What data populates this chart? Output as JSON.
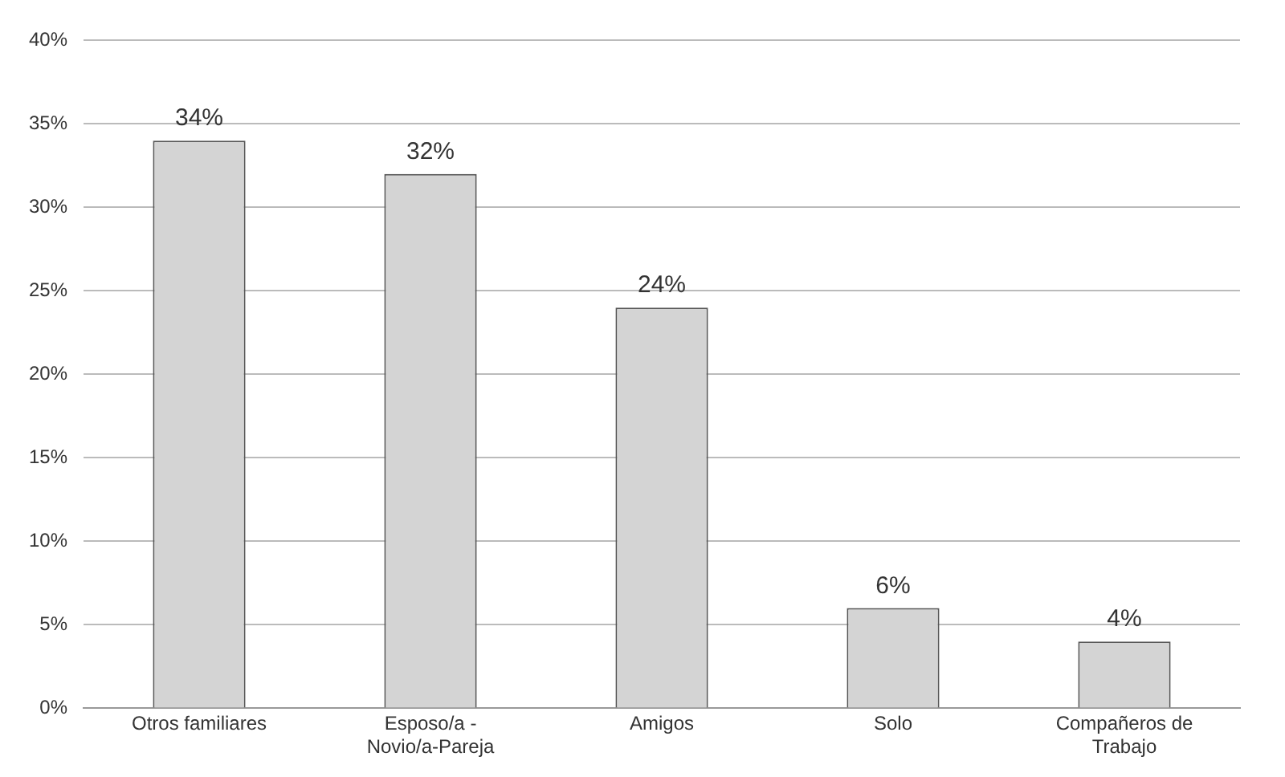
{
  "chart_data": {
    "type": "bar",
    "categories": [
      "Otros familiares",
      "Esposo/a - Novio/a-Pareja",
      "Amigos",
      "Solo",
      "Compañeros de Trabajo"
    ],
    "values": [
      34,
      32,
      24,
      6,
      4
    ],
    "value_labels": [
      "34%",
      "32%",
      "24%",
      "6%",
      "4%"
    ],
    "color": "#d4d4d4",
    "ylim": [
      0,
      40
    ],
    "yticks": [
      {
        "value": 0,
        "label": "0%"
      },
      {
        "value": 5,
        "label": "5%"
      },
      {
        "value": 10,
        "label": "10%"
      },
      {
        "value": 15,
        "label": "15%"
      },
      {
        "value": 20,
        "label": "20%"
      },
      {
        "value": 25,
        "label": "25%"
      },
      {
        "value": 30,
        "label": "30%"
      },
      {
        "value": 35,
        "label": "35%"
      },
      {
        "value": 40,
        "label": "40%"
      }
    ],
    "grid": "y"
  }
}
